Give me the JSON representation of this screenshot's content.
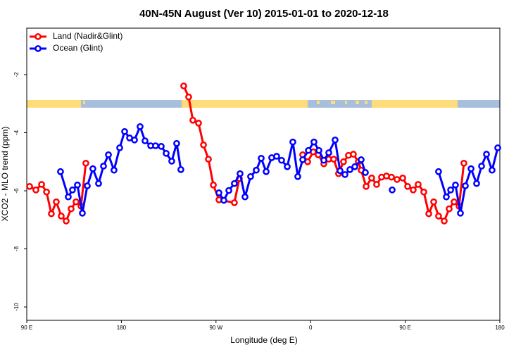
{
  "chart_data": {
    "type": "line",
    "title": "40N-45N August (Ver 10)   2015-01-01 to 2020-12-18",
    "x_label": "Longitude (deg E)",
    "y_label": "XCO2 - MLO trend (ppm)",
    "xlim": [
      90,
      540
    ],
    "xticks": [
      {
        "value": 90,
        "label": "90 E"
      },
      {
        "value": 180,
        "label": "180"
      },
      {
        "value": 270,
        "label": "90 W"
      },
      {
        "value": 360,
        "label": "0"
      },
      {
        "value": 450,
        "label": "90 E"
      },
      {
        "value": 540,
        "label": "180"
      }
    ],
    "ylim": [
      -10.46,
      -0.4
    ],
    "yticks": [
      -10,
      -8,
      -6,
      -4,
      -2
    ],
    "legend": "top-left",
    "series": [
      {
        "name": "Land (Nadir&Glint)",
        "color": "#ff0000",
        "x": [
          92.7,
          98.7,
          104.1,
          108.8,
          113.4,
          118.1,
          122.8,
          127.5,
          132.2,
          136.9,
          141.6,
          146.2,
          null,
          239.3,
          244.0,
          248.0,
          253.4,
          258.1,
          262.8,
          267.5,
          272.8,
          287.5,
          292.2,
          null,
          352.5,
          357.2,
          362.5,
          367.2,
          372.6,
          377.3,
          382.0,
          386.6,
          391.3,
          396.0,
          400.7,
          405.4,
          408.1,
          412.8,
          418.1,
          422.8,
          427.5,
          432.2,
          436.9,
          442.2,
          447.6,
          452.3,
          457.6,
          462.3,
          467.7,
          472.4,
          477.1,
          481.7,
          487.1,
          491.8,
          496.5,
          501.2,
          505.8
        ],
        "values": [
          -5.85,
          -5.97,
          -5.78,
          -6.04,
          -6.79,
          -6.38,
          -6.87,
          -7.04,
          -6.62,
          -6.38,
          -6.53,
          -5.05,
          null,
          -2.39,
          -2.77,
          -3.57,
          -3.67,
          -4.42,
          -4.91,
          -5.8,
          -6.31,
          -6.41,
          -5.58,
          null,
          -4.76,
          -5.0,
          -4.66,
          -4.76,
          -5.07,
          -4.91,
          -4.91,
          -5.41,
          -5.0,
          -4.78,
          -4.74,
          -5.0,
          -5.29,
          -5.85,
          -5.56,
          -5.78,
          -5.53,
          -5.49,
          -5.53,
          -5.61,
          -5.56,
          -5.85,
          -5.97,
          -5.78,
          -6.04,
          -6.79,
          -6.38,
          -6.87,
          -7.04,
          -6.62,
          -6.38,
          -6.53,
          -5.05
        ]
      },
      {
        "name": "Ocean (Glint)",
        "color": "#0000ff",
        "x": [
          122.1,
          129.5,
          133.5,
          138.2,
          142.9,
          147.6,
          152.9,
          158.3,
          163.0,
          167.7,
          173.0,
          178.4,
          183.1,
          187.8,
          192.5,
          197.8,
          202.5,
          207.9,
          212.5,
          217.9,
          222.6,
          227.9,
          232.6,
          236.6,
          null,
          272.8,
          277.5,
          282.2,
          287.5,
          292.9,
          297.6,
          302.9,
          308.3,
          313.0,
          317.7,
          323.0,
          327.7,
          332.4,
          337.8,
          343.1,
          347.8,
          352.5,
          357.9,
          363.2,
          367.9,
          372.6,
          377.3,
          383.3,
          388.0,
          392.7,
          397.4,
          402.1,
          408.1,
          412.1,
          null,
          437.6,
          null,
          481.7,
          489.1,
          493.2,
          497.8,
          502.5,
          507.2,
          512.6,
          517.9,
          522.6,
          527.3,
          532.6,
          538.0
        ],
        "values": [
          -5.34,
          -6.21,
          -5.97,
          -5.8,
          -6.77,
          -5.83,
          -5.24,
          -5.75,
          -5.15,
          -4.76,
          -5.29,
          -4.52,
          -3.96,
          -4.18,
          -4.25,
          -3.79,
          -4.28,
          -4.45,
          -4.45,
          -4.47,
          -4.71,
          -4.98,
          -4.37,
          -5.27,
          null,
          -6.07,
          -6.33,
          -5.99,
          -5.75,
          -5.41,
          -6.21,
          -5.51,
          -5.29,
          -4.88,
          -5.34,
          -4.86,
          -4.81,
          -4.95,
          -5.17,
          -4.32,
          -5.51,
          -4.93,
          -4.61,
          -4.32,
          -4.61,
          -4.95,
          -4.69,
          -4.25,
          -5.31,
          -5.44,
          -5.27,
          -5.17,
          -4.93,
          -5.37,
          null,
          -5.97,
          null,
          -5.34,
          -6.21,
          -5.97,
          -5.8,
          -6.77,
          -5.83,
          -5.24,
          -5.75,
          -5.15,
          -4.74,
          -5.29,
          -4.52
        ]
      }
    ]
  }
}
